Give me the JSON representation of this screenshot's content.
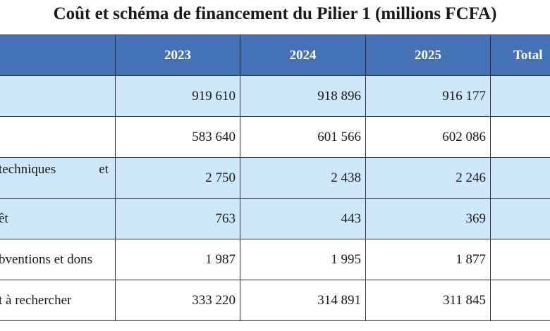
{
  "title": "Coût et schéma de financement du Pilier 1 (millions FCFA)",
  "table": {
    "headers": [
      "",
      "2023",
      "2024",
      "2025",
      "Total"
    ],
    "rows": [
      {
        "label": "",
        "values": [
          "919 610",
          "918 896",
          "916 177",
          ""
        ]
      },
      {
        "label": "",
        "values": [
          "583 640",
          "601 566",
          "602 086",
          ""
        ]
      },
      {
        "label_parts": [
          "techniques",
          "et"
        ],
        "values": [
          "2 750",
          "2 438",
          "2 246",
          ""
        ]
      },
      {
        "label": "êt",
        "values": [
          "763",
          "443",
          "369",
          ""
        ]
      },
      {
        "label": "bventions et dons",
        "values": [
          "1 987",
          "1 995",
          "1 877",
          ""
        ]
      },
      {
        "label": "t à rechercher",
        "values": [
          "333 220",
          "314 891",
          "311 845",
          ""
        ]
      }
    ]
  }
}
